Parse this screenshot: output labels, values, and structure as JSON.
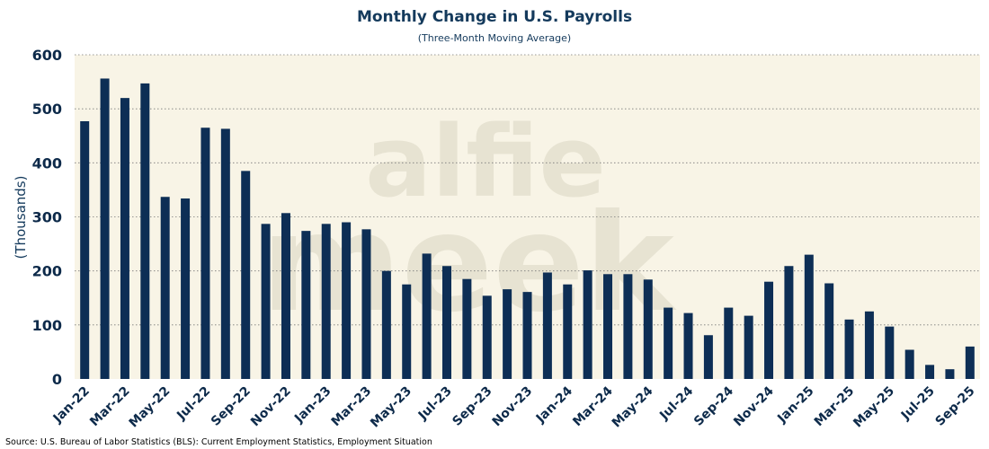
{
  "chart_data": {
    "type": "bar",
    "title": "Monthly Change in U.S. Payrolls",
    "subtitle": "(Three-Month Moving Average)",
    "xlabel": "",
    "ylabel": "(Thousands)",
    "ylim": [
      0,
      600
    ],
    "yticks": [
      0,
      100,
      200,
      300,
      400,
      500,
      600
    ],
    "grid": true,
    "categories": [
      "Jan-22",
      "Feb-22",
      "Mar-22",
      "Apr-22",
      "May-22",
      "Jun-22",
      "Jul-22",
      "Aug-22",
      "Sep-22",
      "Oct-22",
      "Nov-22",
      "Dec-22",
      "Jan-23",
      "Feb-23",
      "Mar-23",
      "Apr-23",
      "May-23",
      "Jun-23",
      "Jul-23",
      "Aug-23",
      "Sep-23",
      "Oct-23",
      "Nov-23",
      "Dec-23",
      "Jan-24",
      "Feb-24",
      "Mar-24",
      "Apr-24",
      "May-24",
      "Jun-24",
      "Jul-24",
      "Aug-24",
      "Sep-24",
      "Oct-24",
      "Nov-24",
      "Dec-24",
      "Jan-25",
      "Feb-25",
      "Mar-25",
      "Apr-25",
      "May-25",
      "Jun-25",
      "Jul-25",
      "Aug-25",
      "Sep-25"
    ],
    "xtick_labels": [
      "Jan-22",
      "Mar-22",
      "May-22",
      "Jul-22",
      "Sep-22",
      "Nov-22",
      "Jan-23",
      "Mar-23",
      "May-23",
      "Jul-23",
      "Sep-23",
      "Nov-23",
      "Jan-24",
      "Mar-24",
      "May-24",
      "Jul-24",
      "Sep-24",
      "Nov-24",
      "Jan-25",
      "Mar-25",
      "May-25",
      "Jul-25",
      "Sep-25"
    ],
    "values": [
      477,
      556,
      520,
      547,
      337,
      334,
      465,
      463,
      385,
      287,
      307,
      274,
      287,
      290,
      277,
      200,
      175,
      232,
      209,
      185,
      154,
      166,
      161,
      197,
      175,
      201,
      194,
      194,
      184,
      132,
      122,
      81,
      132,
      117,
      180,
      209,
      230,
      177,
      110,
      125,
      97,
      54,
      26,
      18,
      60
    ],
    "watermark": [
      "alfie",
      "meek"
    ],
    "source": "Source: U.S. Bureau of Labor Statistics (BLS): Current Employment Statistics, Employment Situation",
    "colors": {
      "bar": "#0d2e55",
      "plot_background": "#f8f4e6",
      "grid": "#7a7a7a",
      "text": "#143a5c"
    }
  }
}
